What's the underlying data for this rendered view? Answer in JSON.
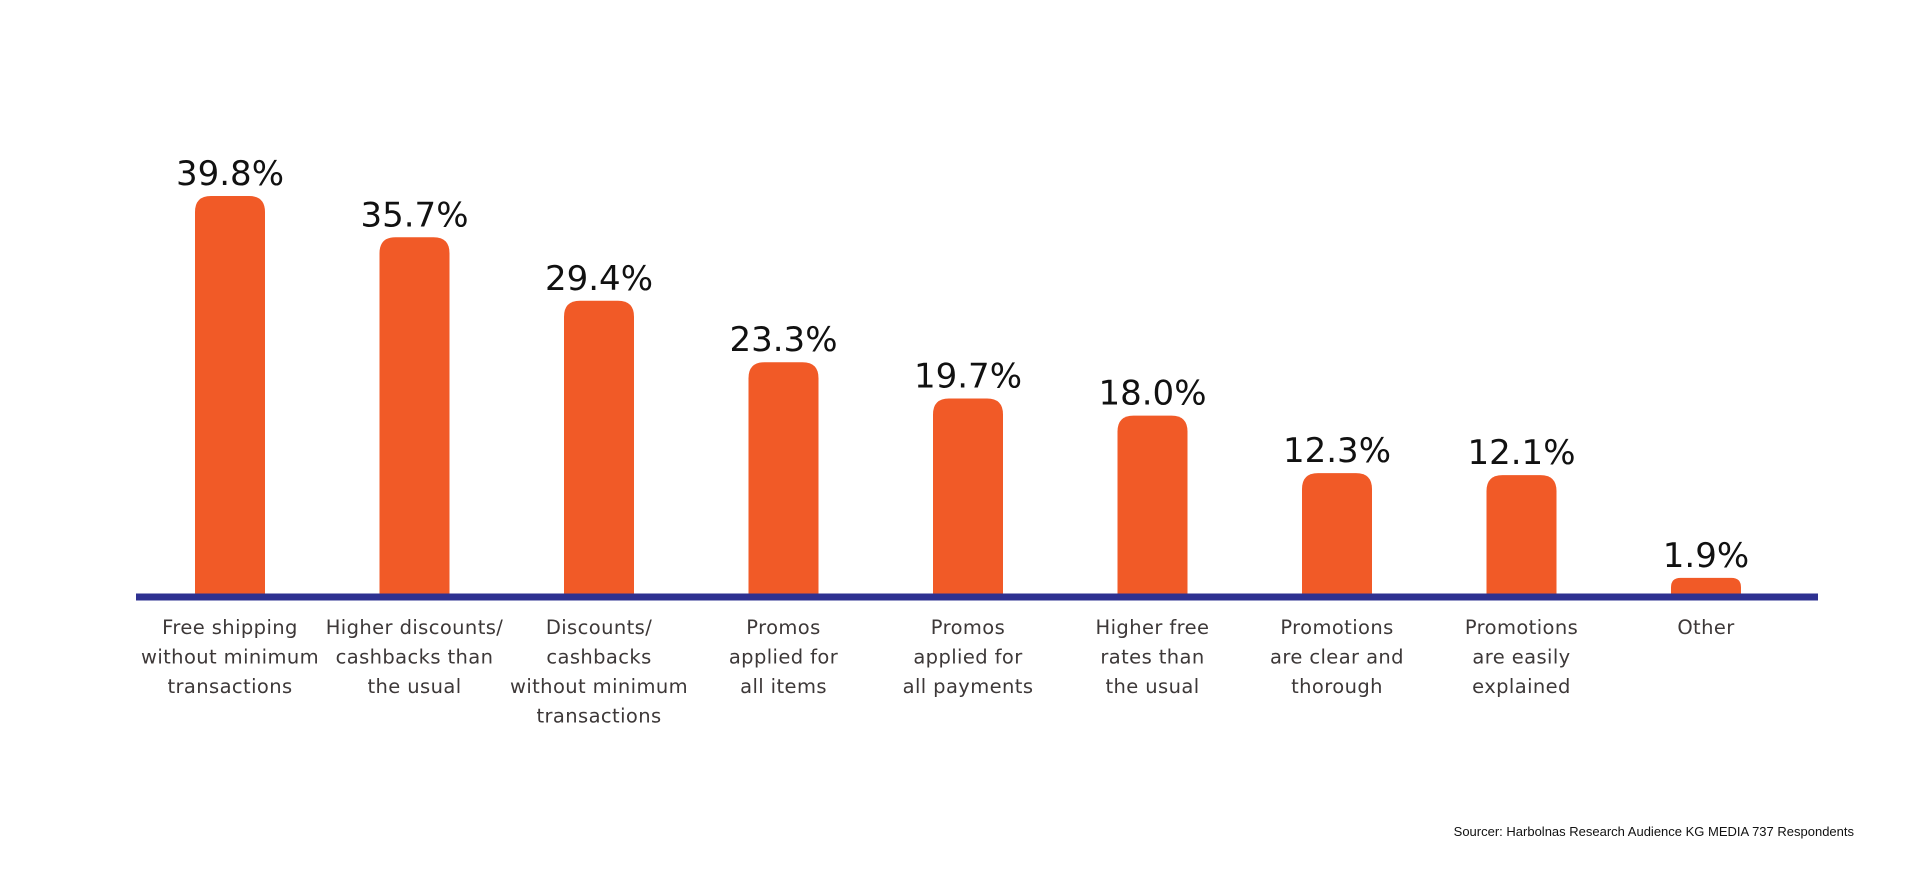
{
  "chart_data": {
    "type": "bar",
    "categories": [
      [
        "Free shipping",
        "without minimum",
        "transactions"
      ],
      [
        "Higher discounts/",
        "cashbacks than",
        "the usual"
      ],
      [
        "Discounts/",
        "cashbacks",
        "without minimum",
        "transactions"
      ],
      [
        "Promos",
        "applied for",
        "all items"
      ],
      [
        "Promos",
        "applied for",
        "all payments"
      ],
      [
        "Higher free",
        "rates than",
        "the usual"
      ],
      [
        "Promotions",
        "are clear and",
        "thorough"
      ],
      [
        "Promotions",
        "are easily",
        "explained"
      ],
      [
        "Other"
      ]
    ],
    "values": [
      39.8,
      35.7,
      29.4,
      23.3,
      19.7,
      18.0,
      12.3,
      12.1,
      1.9
    ],
    "value_labels": [
      "39.8%",
      "35.7%",
      "29.4%",
      "23.3%",
      "19.7%",
      "18.0%",
      "12.3%",
      "12.1%",
      "1.9%"
    ],
    "ylim": [
      0,
      40
    ],
    "grid": false,
    "legend": "none",
    "colors": {
      "bar": "#F15A27",
      "axis": "#2E3191"
    }
  },
  "source": "Sourcer: Harbolnas Research Audience KG MEDIA 737 Respondents"
}
